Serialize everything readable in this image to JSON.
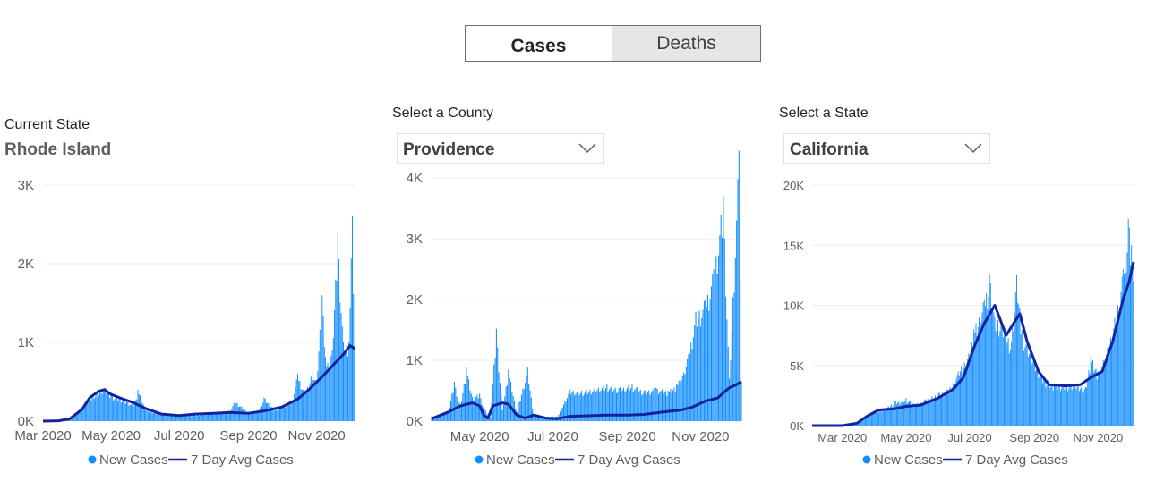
{
  "toggle": {
    "cases_label": "Cases",
    "deaths_label": "Deaths",
    "selected": "Cases"
  },
  "panel1": {
    "heading": "Current State",
    "value": "Rhode Island"
  },
  "panel2": {
    "heading": "Select a County",
    "selected": "Providence",
    "chevron_icon": "chevron-down-icon"
  },
  "panel3": {
    "heading": "Select a State",
    "selected": "California",
    "chevron_icon": "chevron-down-icon"
  },
  "colors": {
    "bars": "#118dff",
    "line": "#12239e",
    "grid": "#eeeeee",
    "axis_text": "#605e5c"
  },
  "chart_data": [
    {
      "type": "bar+line",
      "region": "Rhode Island",
      "x_start": "2020-03-01",
      "x_end": "2020-12-05",
      "ylim": [
        0,
        3000
      ],
      "y_ticks": [
        0,
        1000,
        2000,
        3000
      ],
      "y_tick_labels": [
        "0K",
        "1K",
        "2K",
        "3K"
      ],
      "x_ticks": [
        "2020-03-01",
        "2020-05-01",
        "2020-07-01",
        "2020-09-01",
        "2020-11-01"
      ],
      "x_tick_labels": [
        "Mar 2020",
        "May 2020",
        "Jul 2020",
        "Sep 2020",
        "Nov 2020"
      ],
      "legend": {
        "position": "bottom-center",
        "entries": [
          "New Cases",
          "7 Day Avg Cases"
        ]
      },
      "series": [
        {
          "name": "New Cases",
          "kind": "bar",
          "points": [
            [
              "2020-03-01",
              0
            ],
            [
              "2020-03-15",
              5
            ],
            [
              "2020-03-25",
              40
            ],
            [
              "2020-04-01",
              120
            ],
            [
              "2020-04-08",
              250
            ],
            [
              "2020-04-15",
              320
            ],
            [
              "2020-04-22",
              400
            ],
            [
              "2020-04-26",
              420
            ],
            [
              "2020-05-01",
              330
            ],
            [
              "2020-05-08",
              300
            ],
            [
              "2020-05-15",
              250
            ],
            [
              "2020-05-22",
              210
            ],
            [
              "2020-05-25",
              400
            ],
            [
              "2020-06-01",
              140
            ],
            [
              "2020-06-10",
              110
            ],
            [
              "2020-06-20",
              80
            ],
            [
              "2020-07-01",
              70
            ],
            [
              "2020-07-15",
              80
            ],
            [
              "2020-07-25",
              90
            ],
            [
              "2020-08-05",
              120
            ],
            [
              "2020-08-15",
              130
            ],
            [
              "2020-08-20",
              260
            ],
            [
              "2020-09-01",
              110
            ],
            [
              "2020-09-10",
              130
            ],
            [
              "2020-09-15",
              300
            ],
            [
              "2020-09-25",
              140
            ],
            [
              "2020-10-01",
              190
            ],
            [
              "2020-10-10",
              250
            ],
            [
              "2020-10-15",
              600
            ],
            [
              "2020-10-22",
              350
            ],
            [
              "2020-10-28",
              650
            ],
            [
              "2020-11-01",
              500
            ],
            [
              "2020-11-06",
              1600
            ],
            [
              "2020-11-10",
              700
            ],
            [
              "2020-11-15",
              900
            ],
            [
              "2020-11-20",
              2400
            ],
            [
              "2020-11-25",
              1000
            ],
            [
              "2020-11-30",
              1000
            ],
            [
              "2020-12-03",
              2600
            ],
            [
              "2020-12-05",
              950
            ]
          ]
        },
        {
          "name": "7 Day Avg Cases",
          "kind": "line",
          "points": [
            [
              "2020-03-01",
              0
            ],
            [
              "2020-03-15",
              5
            ],
            [
              "2020-03-25",
              30
            ],
            [
              "2020-04-05",
              150
            ],
            [
              "2020-04-12",
              300
            ],
            [
              "2020-04-20",
              380
            ],
            [
              "2020-04-25",
              400
            ],
            [
              "2020-05-01",
              340
            ],
            [
              "2020-05-10",
              290
            ],
            [
              "2020-05-20",
              240
            ],
            [
              "2020-06-01",
              160
            ],
            [
              "2020-06-15",
              90
            ],
            [
              "2020-07-01",
              70
            ],
            [
              "2020-07-15",
              90
            ],
            [
              "2020-08-01",
              100
            ],
            [
              "2020-08-15",
              110
            ],
            [
              "2020-09-01",
              100
            ],
            [
              "2020-09-15",
              130
            ],
            [
              "2020-10-01",
              180
            ],
            [
              "2020-10-15",
              280
            ],
            [
              "2020-10-25",
              400
            ],
            [
              "2020-11-05",
              550
            ],
            [
              "2020-11-15",
              700
            ],
            [
              "2020-11-25",
              850
            ],
            [
              "2020-12-01",
              960
            ],
            [
              "2020-12-05",
              920
            ]
          ]
        }
      ]
    },
    {
      "type": "bar+line",
      "region": "Providence",
      "x_start": "2020-03-22",
      "x_end": "2020-12-05",
      "ylim": [
        0,
        4400
      ],
      "y_ticks": [
        0,
        1000,
        2000,
        3000,
        4000
      ],
      "y_tick_labels": [
        "0K",
        "1K",
        "2K",
        "3K",
        "4K"
      ],
      "x_ticks": [
        "2020-05-01",
        "2020-07-01",
        "2020-09-01",
        "2020-11-01"
      ],
      "x_tick_labels": [
        "May 2020",
        "Jul 2020",
        "Sep 2020",
        "Nov 2020"
      ],
      "legend": {
        "position": "bottom-center",
        "entries": [
          "New Cases",
          "7 Day Avg Cases"
        ]
      },
      "series": [
        {
          "name": "New Cases",
          "kind": "bar",
          "points": [
            [
              "2020-03-22",
              80
            ],
            [
              "2020-03-30",
              100
            ],
            [
              "2020-04-05",
              150
            ],
            [
              "2020-04-10",
              650
            ],
            [
              "2020-04-15",
              250
            ],
            [
              "2020-04-20",
              880
            ],
            [
              "2020-04-25",
              400
            ],
            [
              "2020-05-01",
              450
            ],
            [
              "2020-05-05",
              200
            ],
            [
              "2020-05-10",
              50
            ],
            [
              "2020-05-15",
              1520
            ],
            [
              "2020-05-20",
              180
            ],
            [
              "2020-05-25",
              850
            ],
            [
              "2020-06-01",
              150
            ],
            [
              "2020-06-10",
              880
            ],
            [
              "2020-06-15",
              80
            ],
            [
              "2020-06-25",
              70
            ],
            [
              "2020-07-05",
              80
            ],
            [
              "2020-07-15",
              520
            ],
            [
              "2020-07-25",
              500
            ],
            [
              "2020-08-05",
              550
            ],
            [
              "2020-08-15",
              600
            ],
            [
              "2020-08-25",
              550
            ],
            [
              "2020-09-05",
              600
            ],
            [
              "2020-09-15",
              500
            ],
            [
              "2020-09-25",
              550
            ],
            [
              "2020-10-05",
              500
            ],
            [
              "2020-10-12",
              600
            ],
            [
              "2020-10-18",
              800
            ],
            [
              "2020-10-22",
              1100
            ],
            [
              "2020-10-28",
              1800
            ],
            [
              "2020-11-05",
              2000
            ],
            [
              "2020-11-12",
              2500
            ],
            [
              "2020-11-20",
              3700
            ],
            [
              "2020-11-25",
              700
            ],
            [
              "2020-12-03",
              4450
            ],
            [
              "2020-12-05",
              650
            ]
          ]
        },
        {
          "name": "7 Day Avg Cases",
          "kind": "line",
          "points": [
            [
              "2020-03-22",
              40
            ],
            [
              "2020-04-05",
              150
            ],
            [
              "2020-04-15",
              250
            ],
            [
              "2020-04-25",
              300
            ],
            [
              "2020-05-01",
              250
            ],
            [
              "2020-05-05",
              80
            ],
            [
              "2020-05-08",
              50
            ],
            [
              "2020-05-12",
              250
            ],
            [
              "2020-05-20",
              300
            ],
            [
              "2020-05-25",
              280
            ],
            [
              "2020-06-01",
              100
            ],
            [
              "2020-06-08",
              50
            ],
            [
              "2020-06-15",
              100
            ],
            [
              "2020-06-25",
              50
            ],
            [
              "2020-07-05",
              40
            ],
            [
              "2020-07-15",
              80
            ],
            [
              "2020-08-01",
              90
            ],
            [
              "2020-08-15",
              100
            ],
            [
              "2020-09-01",
              100
            ],
            [
              "2020-09-15",
              110
            ],
            [
              "2020-10-01",
              150
            ],
            [
              "2020-10-15",
              180
            ],
            [
              "2020-10-25",
              230
            ],
            [
              "2020-11-05",
              330
            ],
            [
              "2020-11-15",
              380
            ],
            [
              "2020-11-25",
              550
            ],
            [
              "2020-12-01",
              600
            ],
            [
              "2020-12-05",
              650
            ]
          ]
        }
      ]
    },
    {
      "type": "bar+line",
      "region": "California",
      "x_start": "2020-02-01",
      "x_end": "2020-12-05",
      "ylim": [
        0,
        20000
      ],
      "y_ticks": [
        0,
        5000,
        10000,
        15000,
        20000
      ],
      "y_tick_labels": [
        "0K",
        "5K",
        "10K",
        "15K",
        "20K"
      ],
      "x_ticks": [
        "2020-03-01",
        "2020-05-01",
        "2020-07-01",
        "2020-09-01",
        "2020-11-01"
      ],
      "x_tick_labels": [
        "Mar 2020",
        "May 2020",
        "Jul 2020",
        "Sep 2020",
        "Nov 2020"
      ],
      "legend": {
        "position": "bottom-center",
        "entries": [
          "New Cases",
          "7 Day Avg Cases"
        ]
      },
      "series": [
        {
          "name": "New Cases",
          "kind": "bar",
          "points": [
            [
              "2020-02-01",
              0
            ],
            [
              "2020-03-01",
              0
            ],
            [
              "2020-03-10",
              100
            ],
            [
              "2020-03-20",
              600
            ],
            [
              "2020-04-01",
              1200
            ],
            [
              "2020-04-10",
              1400
            ],
            [
              "2020-04-20",
              2000
            ],
            [
              "2020-05-01",
              2300
            ],
            [
              "2020-05-10",
              1800
            ],
            [
              "2020-05-20",
              2200
            ],
            [
              "2020-06-01",
              2700
            ],
            [
              "2020-06-10",
              3000
            ],
            [
              "2020-06-20",
              4500
            ],
            [
              "2020-06-30",
              6000
            ],
            [
              "2020-07-05",
              8000
            ],
            [
              "2020-07-15",
              10500
            ],
            [
              "2020-07-20",
              12600
            ],
            [
              "2020-07-25",
              9000
            ],
            [
              "2020-08-01",
              8500
            ],
            [
              "2020-08-10",
              7000
            ],
            [
              "2020-08-15",
              12500
            ],
            [
              "2020-08-20",
              8000
            ],
            [
              "2020-09-01",
              5500
            ],
            [
              "2020-09-10",
              4000
            ],
            [
              "2020-09-20",
              3500
            ],
            [
              "2020-10-01",
              3500
            ],
            [
              "2020-10-10",
              3500
            ],
            [
              "2020-10-20",
              3200
            ],
            [
              "2020-10-25",
              5800
            ],
            [
              "2020-11-01",
              4500
            ],
            [
              "2020-11-10",
              6500
            ],
            [
              "2020-11-20",
              10000
            ],
            [
              "2020-11-25",
              13000
            ],
            [
              "2020-11-30",
              17200
            ],
            [
              "2020-12-03",
              15000
            ],
            [
              "2020-12-05",
              12000
            ]
          ]
        },
        {
          "name": "7 Day Avg Cases",
          "kind": "line",
          "points": [
            [
              "2020-02-01",
              0
            ],
            [
              "2020-03-01",
              0
            ],
            [
              "2020-03-15",
              200
            ],
            [
              "2020-03-25",
              800
            ],
            [
              "2020-04-05",
              1300
            ],
            [
              "2020-04-20",
              1400
            ],
            [
              "2020-05-01",
              1600
            ],
            [
              "2020-05-15",
              1700
            ],
            [
              "2020-06-01",
              2300
            ],
            [
              "2020-06-15",
              3000
            ],
            [
              "2020-06-25",
              4000
            ],
            [
              "2020-07-05",
              6500
            ],
            [
              "2020-07-15",
              8500
            ],
            [
              "2020-07-25",
              10000
            ],
            [
              "2020-08-05",
              7500
            ],
            [
              "2020-08-12",
              8500
            ],
            [
              "2020-08-18",
              9300
            ],
            [
              "2020-08-25",
              7000
            ],
            [
              "2020-09-05",
              4500
            ],
            [
              "2020-09-15",
              3400
            ],
            [
              "2020-10-01",
              3300
            ],
            [
              "2020-10-15",
              3400
            ],
            [
              "2020-10-25",
              4000
            ],
            [
              "2020-11-05",
              4500
            ],
            [
              "2020-11-15",
              7000
            ],
            [
              "2020-11-25",
              10500
            ],
            [
              "2020-12-01",
              12000
            ],
            [
              "2020-12-05",
              13600
            ]
          ]
        }
      ]
    }
  ]
}
